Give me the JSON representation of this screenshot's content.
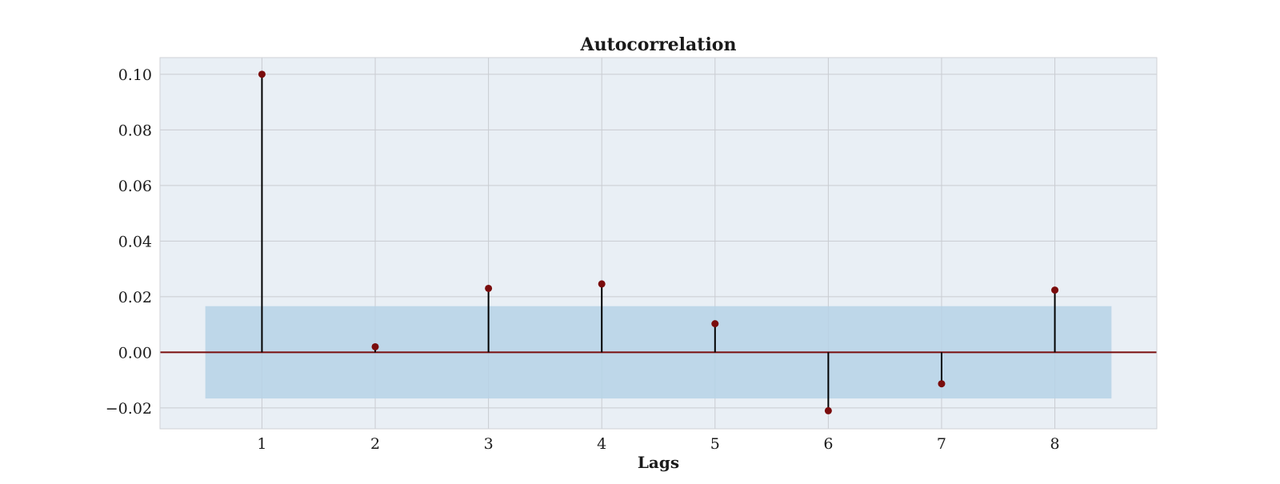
{
  "chart_data": {
    "type": "stem",
    "title": "Autocorrelation",
    "xlabel": "Lags",
    "ylabel": "",
    "x": [
      1,
      2,
      3,
      4,
      5,
      6,
      7,
      8
    ],
    "values": [
      0.1,
      0.002,
      0.023,
      0.0246,
      0.0103,
      -0.021,
      -0.0113,
      0.0224
    ],
    "confidence_band": {
      "upper": 0.0166,
      "lower": -0.0166,
      "x_range": [
        0.5,
        8.5
      ]
    },
    "xlim": [
      0.1,
      8.9
    ],
    "ylim": [
      -0.0275,
      0.106
    ],
    "xticks": [
      1,
      2,
      3,
      4,
      5,
      6,
      7,
      8
    ],
    "xtick_labels": [
      "1",
      "2",
      "3",
      "4",
      "5",
      "6",
      "7",
      "8"
    ],
    "yticks": [
      -0.02,
      0.0,
      0.02,
      0.04,
      0.06,
      0.08,
      0.1
    ],
    "ytick_labels": [
      "−0.02",
      "0.00",
      "0.02",
      "0.04",
      "0.06",
      "0.08",
      "0.10"
    ],
    "grid": true,
    "colors": {
      "plot_background": "#e9eff5",
      "grid": "#c9ccd1",
      "axis_frame": "#cfd2d6",
      "confidence_band": "#b6d2e6",
      "zero_line": "#7a0c0c",
      "stem": "#000000",
      "marker": "#7a0c0c"
    }
  }
}
